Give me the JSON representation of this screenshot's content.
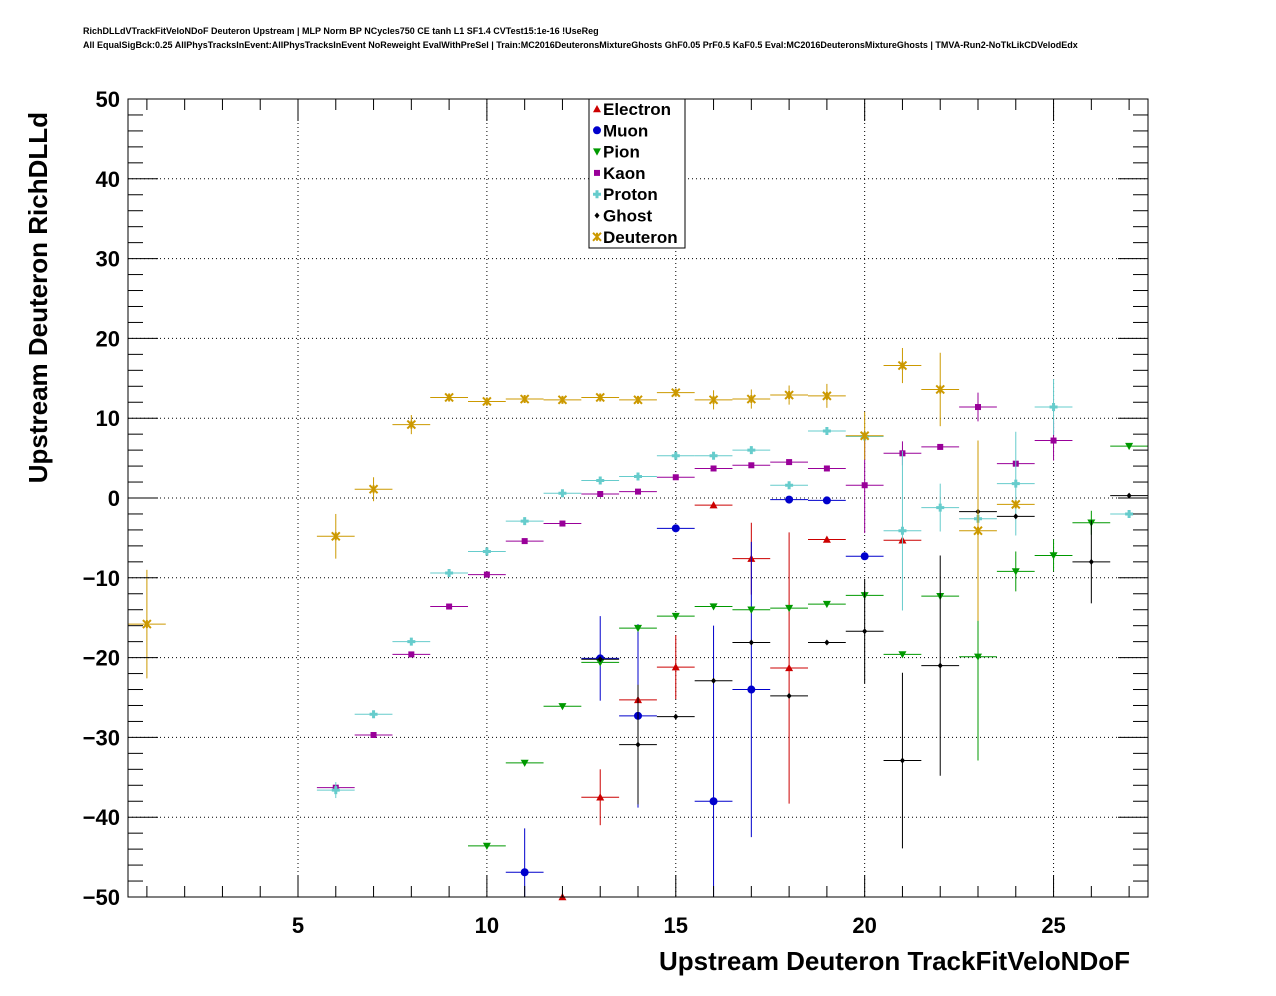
{
  "chart_data": {
    "type": "scatter",
    "title": "RichDLLdVTrackFitVeloNDoF Deuteron Upstream | MLP Norm BP NCycles750 CE tanh L1 SF1.4 CVTest15:1e-16 !UseReg",
    "subtitle": "All EqualSigBck:0.25 AllPhysTracksInEvent:AllPhysTracksInEvent NoReweight EvalWithPreSel | Train:MC2016DeuteronsMixtureGhosts GhF0.05 PrF0.5 KaF0.5 Eval:MC2016DeuteronsMixtureGhosts | TMVA-Run2-NoTkLikCDVelodEdx",
    "xlabel": "Upstream Deuteron TrackFitVeloNDoF",
    "ylabel": "Upstream Deuteron RichDLLd",
    "xlim": [
      0.5,
      27.5
    ],
    "ylim": [
      -50,
      50
    ],
    "x_ticks": [
      5,
      10,
      15,
      20,
      25
    ],
    "y_ticks": [
      -50,
      -40,
      -30,
      -20,
      -10,
      0,
      10,
      20,
      30,
      40,
      50
    ],
    "grid": true,
    "legend_position": "top-center",
    "series": [
      {
        "name": "Electron",
        "color": "#cc0000",
        "marker": "triangle-up",
        "points": [
          [
            12,
            -50,
            0.5
          ],
          [
            13,
            -37.5,
            3.5
          ],
          [
            14,
            -25.3,
            0
          ],
          [
            15,
            -21.2,
            4
          ],
          [
            16,
            -0.9,
            0
          ],
          [
            17,
            -7.6,
            4.5
          ],
          [
            18,
            -21.3,
            17
          ],
          [
            19,
            -5.2,
            0
          ],
          [
            21,
            -5.3,
            0
          ]
        ]
      },
      {
        "name": "Muon",
        "color": "#0000cc",
        "marker": "circle",
        "points": [
          [
            11,
            -46.9,
            5.5
          ],
          [
            13,
            -20.1,
            5.3
          ],
          [
            14,
            -27.3,
            11.5
          ],
          [
            15,
            -3.8,
            0
          ],
          [
            16,
            -38,
            22
          ],
          [
            17,
            -24,
            18.5
          ],
          [
            18,
            -0.2,
            0
          ],
          [
            19,
            -0.3,
            0
          ],
          [
            20,
            -7.3,
            0
          ]
        ]
      },
      {
        "name": "Pion",
        "color": "#009900",
        "marker": "triangle-down",
        "points": [
          [
            10,
            -43.6,
            0
          ],
          [
            11,
            -33.2,
            0
          ],
          [
            12,
            -26.1,
            0
          ],
          [
            13,
            -20.6,
            0
          ],
          [
            14,
            -16.3,
            0
          ],
          [
            15,
            -14.8,
            0
          ],
          [
            16,
            -13.6,
            0
          ],
          [
            17,
            -14,
            0
          ],
          [
            18,
            -13.8,
            0
          ],
          [
            19,
            -13.3,
            0
          ],
          [
            20,
            -12.2,
            0
          ],
          [
            21,
            -19.6,
            0
          ],
          [
            22,
            -12.3,
            0
          ],
          [
            23,
            -19.9,
            13
          ],
          [
            24,
            -9.2,
            2.5
          ],
          [
            25,
            -7.2,
            2
          ],
          [
            26,
            -3.1,
            1.5
          ],
          [
            27,
            6.5,
            0
          ]
        ]
      },
      {
        "name": "Kaon",
        "color": "#990099",
        "marker": "square",
        "points": [
          [
            6,
            -36.3,
            0
          ],
          [
            7,
            -29.7,
            0
          ],
          [
            8,
            -19.6,
            0
          ],
          [
            9,
            -13.6,
            0
          ],
          [
            10,
            -9.6,
            0
          ],
          [
            11,
            -5.4,
            0
          ],
          [
            12,
            -3.2,
            0
          ],
          [
            13,
            0.5,
            0
          ],
          [
            14,
            0.8,
            0
          ],
          [
            15,
            2.6,
            0
          ],
          [
            16,
            3.7,
            0
          ],
          [
            17,
            4.1,
            0
          ],
          [
            18,
            4.5,
            0
          ],
          [
            19,
            3.7,
            0
          ],
          [
            20,
            1.6,
            6
          ],
          [
            21,
            5.6,
            1.5
          ],
          [
            22,
            6.4,
            0
          ],
          [
            23,
            11.4,
            1.8
          ],
          [
            24,
            4.3,
            0
          ],
          [
            25,
            7.2,
            2.5
          ]
        ]
      },
      {
        "name": "Proton",
        "color": "#66cccc",
        "marker": "cross",
        "points": [
          [
            6,
            -36.6,
            1
          ],
          [
            7,
            -27.1,
            0
          ],
          [
            8,
            -18,
            0
          ],
          [
            9,
            -9.4,
            0
          ],
          [
            10,
            -6.7,
            0
          ],
          [
            11,
            -2.9,
            0
          ],
          [
            12,
            0.6,
            0
          ],
          [
            13,
            2.2,
            0
          ],
          [
            14,
            2.7,
            0
          ],
          [
            15,
            5.3,
            0
          ],
          [
            16,
            5.3,
            0
          ],
          [
            17,
            6,
            0
          ],
          [
            18,
            1.6,
            0
          ],
          [
            19,
            8.4,
            0
          ],
          [
            20,
            7.7,
            0
          ],
          [
            21,
            -4.1,
            10
          ],
          [
            22,
            -1.2,
            3
          ],
          [
            23,
            -2.6,
            0
          ],
          [
            24,
            1.8,
            6.5
          ],
          [
            25,
            11.4,
            3.5
          ],
          [
            27,
            -2,
            0
          ]
        ]
      },
      {
        "name": "Ghost",
        "color": "#000000",
        "marker": "diamond",
        "points": [
          [
            13,
            -20.2,
            0
          ],
          [
            14,
            -30.9,
            7.5
          ],
          [
            15,
            -27.4,
            0
          ],
          [
            16,
            -22.9,
            0
          ],
          [
            17,
            -18.1,
            0
          ],
          [
            18,
            -24.8,
            0
          ],
          [
            19,
            -18.1,
            0
          ],
          [
            20,
            -16.7,
            6.5
          ],
          [
            21,
            -32.9,
            11
          ],
          [
            22,
            -21,
            13.8
          ],
          [
            23,
            -1.7,
            0
          ],
          [
            24,
            -2.3,
            0
          ],
          [
            26,
            -8,
            5.2
          ],
          [
            27,
            0.3,
            0
          ]
        ]
      },
      {
        "name": "Deuteron",
        "color": "#cc9900",
        "marker": "star",
        "points": [
          [
            1,
            -15.8,
            6.8
          ],
          [
            6,
            -4.8,
            2.8
          ],
          [
            7,
            1.1,
            1.5
          ],
          [
            8,
            9.2,
            1.2
          ],
          [
            9,
            12.6,
            0
          ],
          [
            10,
            12.1,
            0
          ],
          [
            11,
            12.4,
            0
          ],
          [
            12,
            12.3,
            0
          ],
          [
            13,
            12.6,
            0
          ],
          [
            14,
            12.3,
            0
          ],
          [
            15,
            13.2,
            0
          ],
          [
            16,
            12.3,
            1.2
          ],
          [
            17,
            12.4,
            1.2
          ],
          [
            18,
            12.9,
            1.2
          ],
          [
            19,
            12.8,
            1.5
          ],
          [
            20,
            7.8,
            3
          ],
          [
            21,
            16.6,
            2.2
          ],
          [
            22,
            13.6,
            4.6
          ],
          [
            23,
            -4.1,
            11.3
          ],
          [
            24,
            -0.8,
            0
          ]
        ]
      }
    ]
  }
}
